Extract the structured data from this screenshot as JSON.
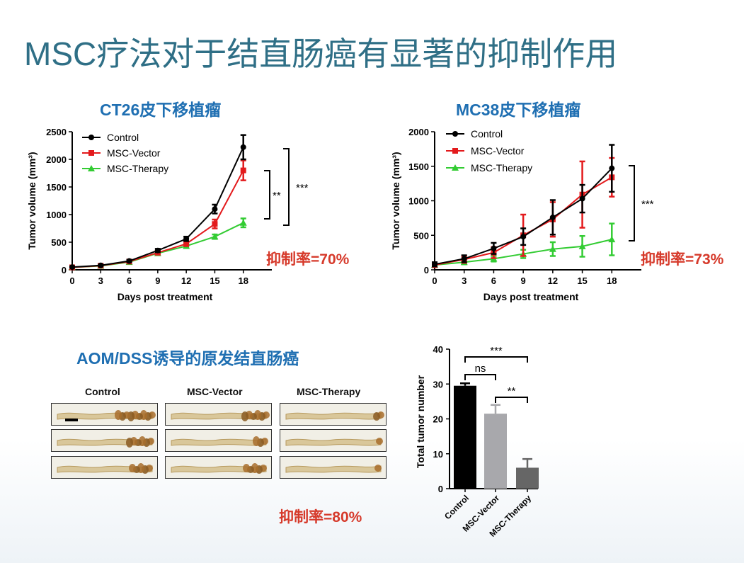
{
  "slide": {
    "title": "MSC疗法对于结直肠癌有显著的抑制作用"
  },
  "ct26": {
    "subtitle": "CT26皮下移植瘤",
    "inhibition": "抑制率=70%",
    "sig_long": "***",
    "sig_short": "**"
  },
  "mc38": {
    "subtitle": "MC38皮下移植瘤",
    "inhibition": "抑制率=73%",
    "sig": "***"
  },
  "aom": {
    "subtitle": "AOM/DSS诱导的原发结直肠癌",
    "inhibition": "抑制率=80%",
    "columns": [
      "Control",
      "MSC-Vector",
      "MSC-Therapy"
    ]
  },
  "colors": {
    "title": "#2f6f86",
    "subtitle": "#1f6fb2",
    "inhibition": "#d63a2b",
    "control": "#000000",
    "vector": "#e31a1c",
    "therapy": "#33cc33",
    "bar_control": "#000000",
    "bar_vector": "#a8a8ac",
    "bar_therapy": "#666666"
  },
  "chart_data": [
    {
      "type": "line",
      "id": "ct26",
      "title": "CT26皮下移植瘤",
      "xlabel": "Days post treatment",
      "ylabel": "Tumor volume (mm³)",
      "x": [
        0,
        3,
        6,
        9,
        12,
        15,
        18
      ],
      "xticks": [
        "0",
        "3",
        "6",
        "9",
        "12",
        "15",
        "18"
      ],
      "yticks": [
        "0",
        "500",
        "1000",
        "1500",
        "2000",
        "2500"
      ],
      "ylim": [
        0,
        2500
      ],
      "xlim": [
        0,
        21
      ],
      "series": [
        {
          "name": "Control",
          "values": [
            50,
            80,
            160,
            350,
            560,
            1100,
            2220
          ],
          "err": [
            10,
            15,
            20,
            30,
            40,
            80,
            220
          ]
        },
        {
          "name": "MSC-Vector",
          "values": [
            45,
            75,
            150,
            310,
            470,
            830,
            1800
          ],
          "err": [
            10,
            12,
            20,
            30,
            40,
            80,
            180
          ]
        },
        {
          "name": "MSC-Therapy",
          "values": [
            45,
            70,
            140,
            300,
            430,
            600,
            850
          ],
          "err": [
            8,
            10,
            15,
            25,
            30,
            40,
            80
          ]
        }
      ],
      "annotations": [
        "***",
        "**"
      ]
    },
    {
      "type": "line",
      "id": "mc38",
      "title": "MC38皮下移植瘤",
      "xlabel": "Days post treatment",
      "ylabel": "Tumor volume (mm³)",
      "x": [
        0,
        3,
        6,
        9,
        12,
        15,
        18
      ],
      "xticks": [
        "0",
        "3",
        "6",
        "9",
        "12",
        "15",
        "18"
      ],
      "yticks": [
        "0",
        "500",
        "1000",
        "1500",
        "2000"
      ],
      "ylim": [
        0,
        2000
      ],
      "xlim": [
        0,
        21
      ],
      "series": [
        {
          "name": "Control",
          "values": [
            80,
            160,
            310,
            480,
            760,
            1030,
            1470
          ],
          "err": [
            30,
            50,
            80,
            120,
            250,
            200,
            340
          ]
        },
        {
          "name": "MSC-Vector",
          "values": [
            70,
            150,
            250,
            500,
            730,
            1090,
            1340
          ],
          "err": [
            30,
            50,
            80,
            300,
            250,
            480,
            280
          ]
        },
        {
          "name": "MSC-Therapy",
          "values": [
            70,
            110,
            160,
            230,
            300,
            340,
            440
          ],
          "err": [
            20,
            30,
            40,
            60,
            100,
            150,
            230
          ]
        }
      ],
      "annotations": [
        "***"
      ]
    },
    {
      "type": "bar",
      "id": "tumor_number",
      "ylabel": "Total tumor number",
      "categories": [
        "Control",
        "MSC-Vector",
        "MSC-Therapy"
      ],
      "values": [
        29.5,
        21.5,
        6
      ],
      "err": [
        0.7,
        2.5,
        2.5
      ],
      "yticks": [
        "0",
        "10",
        "20",
        "30",
        "40"
      ],
      "ylim": [
        0,
        40
      ],
      "annotations": [
        {
          "label": "***",
          "from": "Control",
          "to": "MSC-Therapy"
        },
        {
          "label": "ns",
          "from": "Control",
          "to": "MSC-Vector"
        },
        {
          "label": "**",
          "from": "MSC-Vector",
          "to": "MSC-Therapy"
        }
      ]
    }
  ]
}
